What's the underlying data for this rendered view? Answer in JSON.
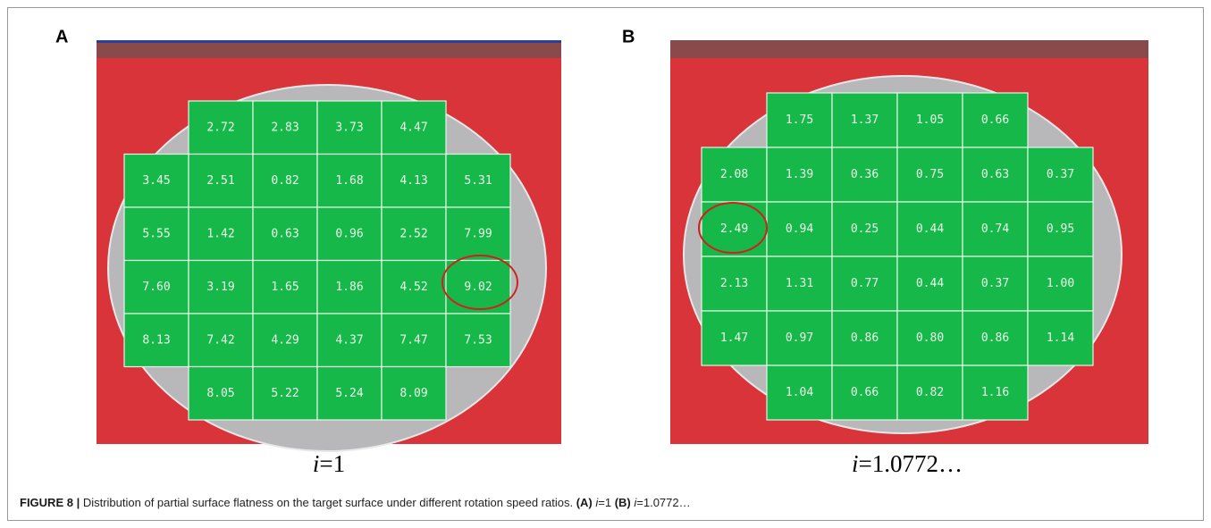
{
  "figure": {
    "panels": [
      {
        "label": "A",
        "caption": {
          "var": "i",
          "rest": "=1"
        },
        "rows": [
          [
            "2.72",
            "2.83",
            "3.73",
            "4.47"
          ],
          [
            "3.45",
            "2.51",
            "0.82",
            "1.68",
            "4.13",
            "5.31"
          ],
          [
            "5.55",
            "1.42",
            "0.63",
            "0.96",
            "2.52",
            "7.99"
          ],
          [
            "7.60",
            "3.19",
            "1.65",
            "1.86",
            "4.52",
            "9.02"
          ],
          [
            "8.13",
            "7.42",
            "4.29",
            "4.37",
            "7.47",
            "7.53"
          ],
          [
            "8.05",
            "5.22",
            "5.24",
            "8.09"
          ]
        ]
      },
      {
        "label": "B",
        "caption": {
          "var": "i",
          "rest": "=1.0772…"
        },
        "rows": [
          [
            "1.75",
            "1.37",
            "1.05",
            "0.66"
          ],
          [
            "2.08",
            "1.39",
            "0.36",
            "0.75",
            "0.63",
            "0.37"
          ],
          [
            "2.49",
            "0.94",
            "0.25",
            "0.44",
            "0.74",
            "0.95"
          ],
          [
            "2.13",
            "1.31",
            "0.77",
            "0.44",
            "0.37",
            "1.00"
          ],
          [
            "1.47",
            "0.97",
            "0.86",
            "0.80",
            "0.86",
            "1.14"
          ],
          [
            "1.04",
            "0.66",
            "0.82",
            "1.16"
          ]
        ]
      }
    ],
    "caption": {
      "label": "FIGURE 8 |",
      "text": "Distribution of partial surface flatness on the target surface under different rotation speed ratios.",
      "items": [
        {
          "tag": "(A)",
          "var": "i",
          "rest": "=1"
        },
        {
          "tag": "(B)",
          "var": "i",
          "rest": "=1.0772…"
        }
      ]
    }
  }
}
